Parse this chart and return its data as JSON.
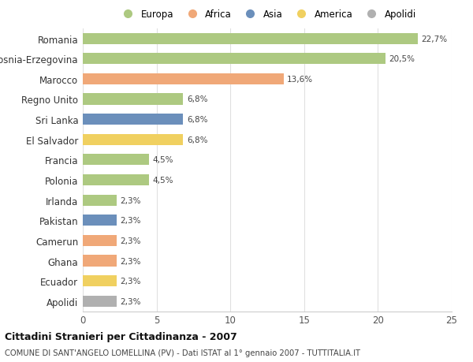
{
  "categories": [
    "Romania",
    "Bosnia-Erzegovina",
    "Marocco",
    "Regno Unito",
    "Sri Lanka",
    "El Salvador",
    "Francia",
    "Polonia",
    "Irlanda",
    "Pakistan",
    "Camerun",
    "Ghana",
    "Ecuador",
    "Apolidi"
  ],
  "values": [
    22.7,
    20.5,
    13.6,
    6.8,
    6.8,
    6.8,
    4.5,
    4.5,
    2.3,
    2.3,
    2.3,
    2.3,
    2.3,
    2.3
  ],
  "labels": [
    "22,7%",
    "20,5%",
    "13,6%",
    "6,8%",
    "6,8%",
    "6,8%",
    "4,5%",
    "4,5%",
    "2,3%",
    "2,3%",
    "2,3%",
    "2,3%",
    "2,3%",
    "2,3%"
  ],
  "colors": [
    "#adc981",
    "#adc981",
    "#f0a878",
    "#adc981",
    "#6b8fbb",
    "#f0d060",
    "#adc981",
    "#adc981",
    "#adc981",
    "#6b8fbb",
    "#f0a878",
    "#f0a878",
    "#f0d060",
    "#b0b0b0"
  ],
  "legend_labels": [
    "Europa",
    "Africa",
    "Asia",
    "America",
    "Apolidi"
  ],
  "legend_colors": [
    "#adc981",
    "#f0a878",
    "#6b8fbb",
    "#f0d060",
    "#b0b0b0"
  ],
  "title": "Cittadini Stranieri per Cittadinanza - 2007",
  "subtitle": "COMUNE DI SANT'ANGELO LOMELLINA (PV) - Dati ISTAT al 1° gennaio 2007 - TUTTITALIA.IT",
  "xlim": [
    0,
    25
  ],
  "xticks": [
    0,
    5,
    10,
    15,
    20,
    25
  ],
  "background_color": "#ffffff",
  "grid_color": "#e0e0e0",
  "bar_height": 0.55
}
